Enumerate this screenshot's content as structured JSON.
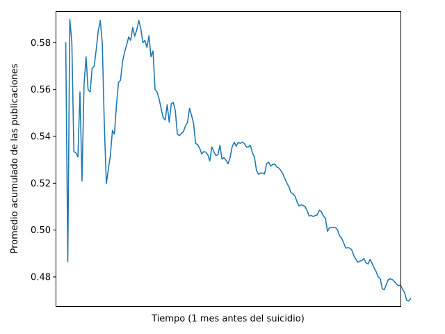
{
  "chart_data": {
    "type": "line",
    "title": "",
    "xlabel": "Tiempo (1 mes antes del suicidio)",
    "ylabel": "Promedio acumulado de las publicaciones",
    "x_ticks_visible": false,
    "grid": false,
    "legend": "none",
    "xlim": [
      -5,
      165
    ],
    "ylim": [
      0.4675,
      0.5935
    ],
    "yticks": [
      0.48,
      0.5,
      0.52,
      0.54,
      0.56,
      0.58
    ],
    "ytick_labels": [
      "0.48",
      "0.50",
      "0.52",
      "0.54",
      "0.56",
      "0.58"
    ],
    "colors": {
      "series": "#1f77b4"
    },
    "series": [
      {
        "name": "",
        "values": [
          0.58,
          0.4865,
          0.59,
          0.58,
          0.5335,
          0.533,
          0.5312,
          0.559,
          0.521,
          0.562,
          0.574,
          0.56,
          0.559,
          0.569,
          0.57,
          0.577,
          0.585,
          0.5895,
          0.58,
          0.545,
          0.5198,
          0.526,
          0.532,
          0.5425,
          0.541,
          0.5535,
          0.563,
          0.564,
          0.572,
          0.576,
          0.579,
          0.5825,
          0.581,
          0.5865,
          0.5828,
          0.5855,
          0.5895,
          0.586,
          0.58,
          0.581,
          0.578,
          0.583,
          0.574,
          0.5765,
          0.56,
          0.559,
          0.556,
          0.552,
          0.548,
          0.547,
          0.5535,
          0.546,
          0.554,
          0.5545,
          0.551,
          0.541,
          0.5403,
          0.5413,
          0.542,
          0.5445,
          0.546,
          0.552,
          0.549,
          0.5455,
          0.537,
          0.5365,
          0.535,
          0.5325,
          0.5335,
          0.5333,
          0.5322,
          0.5295,
          0.5355,
          0.5335,
          0.5318,
          0.5322,
          0.5362,
          0.5303,
          0.531,
          0.5298,
          0.5283,
          0.531,
          0.5355,
          0.5375,
          0.5358,
          0.5375,
          0.537,
          0.5376,
          0.537,
          0.5355,
          0.5355,
          0.5362,
          0.533,
          0.5312,
          0.5255,
          0.5238,
          0.5243,
          0.5243,
          0.524,
          0.5283,
          0.529,
          0.5273,
          0.528,
          0.5282,
          0.527,
          0.5265,
          0.5255,
          0.524,
          0.522,
          0.52,
          0.5185,
          0.516,
          0.5155,
          0.5145,
          0.512,
          0.5103,
          0.5108,
          0.5105,
          0.51,
          0.5082,
          0.506,
          0.5062,
          0.5058,
          0.5062,
          0.5065,
          0.5085,
          0.5078,
          0.506,
          0.505,
          0.4995,
          0.501,
          0.501,
          0.5012,
          0.501,
          0.5,
          0.4975,
          0.4965,
          0.4945,
          0.4923,
          0.4925,
          0.4923,
          0.4915,
          0.489,
          0.4875,
          0.4862,
          0.4868,
          0.487,
          0.4878,
          0.486,
          0.4855,
          0.4875,
          0.4858,
          0.4838,
          0.4822,
          0.48,
          0.4793,
          0.475,
          0.4745,
          0.4768,
          0.4788,
          0.4792,
          0.4788,
          0.478,
          0.477,
          0.4762,
          0.4765,
          0.4747,
          0.4733,
          0.47,
          0.4697,
          0.4707
        ]
      }
    ]
  }
}
